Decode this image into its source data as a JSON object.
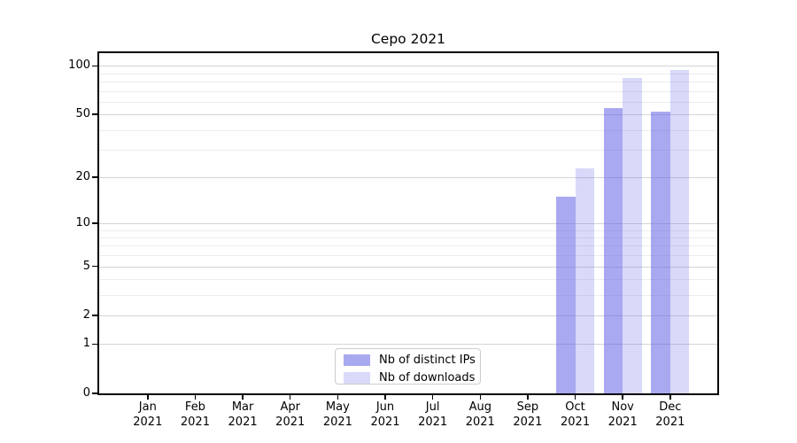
{
  "chart_data": {
    "type": "bar",
    "title": "Cepo 2021",
    "categories": [
      "Jan",
      "Feb",
      "Mar",
      "Apr",
      "May",
      "Jun",
      "Jul",
      "Aug",
      "Sep",
      "Oct",
      "Nov",
      "Dec"
    ],
    "category_year": "2021",
    "series": [
      {
        "name": "Nb of distinct IPs",
        "color": "rgba(102,102,230,0.56)",
        "values": [
          0,
          0,
          0,
          0,
          0,
          0,
          0,
          0,
          0,
          15,
          55,
          52
        ]
      },
      {
        "name": "Nb of downloads",
        "color": "rgba(102,102,230,0.25)",
        "values": [
          0,
          0,
          0,
          0,
          0,
          0,
          0,
          0,
          0,
          23,
          84,
          95
        ]
      }
    ],
    "y_scale": "log1p",
    "ylim": [
      0,
      120
    ],
    "y_ticks": [
      0,
      1,
      2,
      5,
      10,
      20,
      50,
      100
    ],
    "y_minor_gridlines": [
      3,
      4,
      6,
      7,
      8,
      9,
      30,
      40,
      60,
      70,
      80,
      90
    ],
    "grid": true,
    "legend_position": "lower center",
    "axis_color": "#000000",
    "major_grid_color": "#d4d4d4",
    "minor_grid_color": "#ededed"
  }
}
